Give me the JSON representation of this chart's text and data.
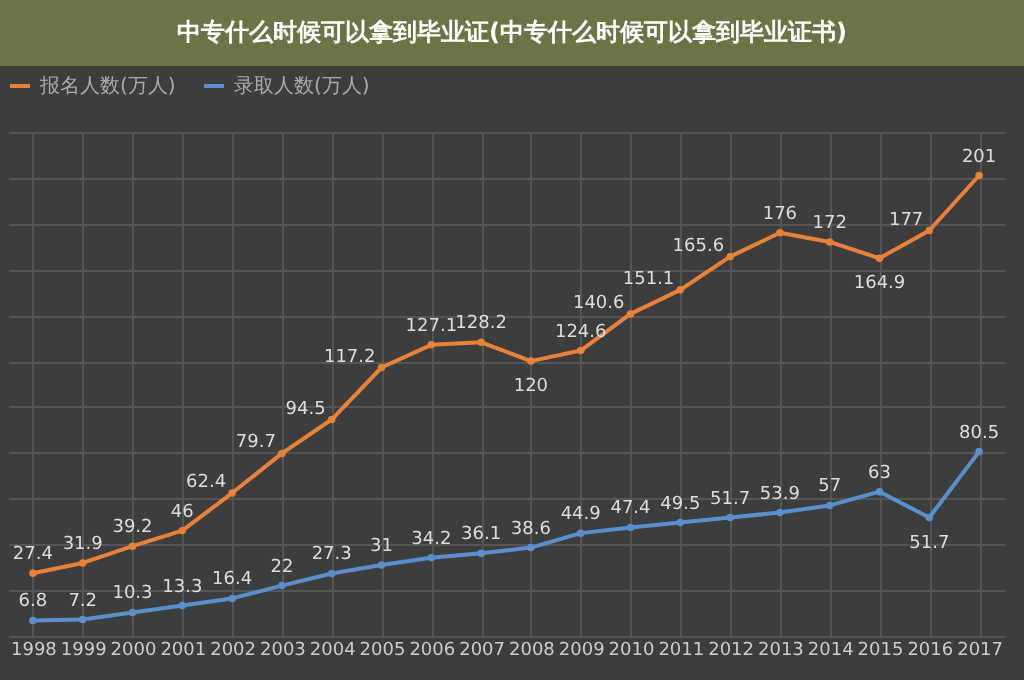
{
  "chart_data": {
    "type": "line",
    "title": "中专什么时候可以拿到毕业证(中专什么时候可以拿到毕业证书)",
    "categories": [
      "1998",
      "1999",
      "2000",
      "2001",
      "2002",
      "2003",
      "2004",
      "2005",
      "2006",
      "2007",
      "2008",
      "2009",
      "2010",
      "2011",
      "2012",
      "2013",
      "2014",
      "2015",
      "2016",
      "2017"
    ],
    "series": [
      {
        "name": "报名人数(万人)",
        "color": "#e8823a",
        "values": [
          27.4,
          31.9,
          39.2,
          46,
          62.4,
          79.7,
          94.5,
          117.2,
          127.1,
          128.2,
          120,
          124.6,
          140.6,
          151.1,
          165.6,
          176,
          172,
          164.9,
          177,
          201
        ]
      },
      {
        "name": "录取人数(万人)",
        "color": "#5b8fc9",
        "values": [
          6.8,
          7.2,
          10.3,
          13.3,
          16.4,
          22,
          27.3,
          31,
          34.2,
          36.1,
          38.6,
          44.9,
          47.4,
          49.5,
          51.7,
          53.9,
          57,
          63,
          51.7,
          80.5
        ]
      }
    ],
    "data_labels": true,
    "grid": true,
    "legend": "top",
    "marker": "circle"
  }
}
